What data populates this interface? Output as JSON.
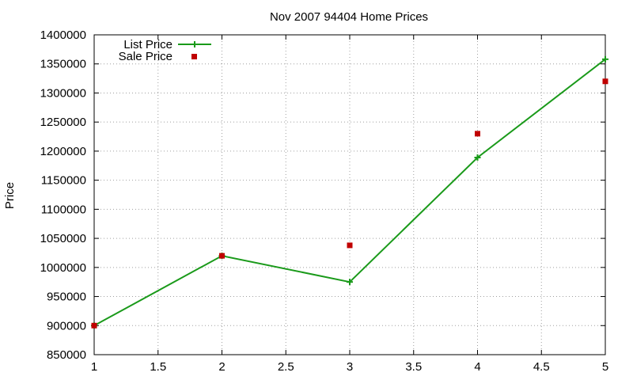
{
  "chart_data": {
    "type": "line",
    "title": "Nov 2007 94404 Home Prices",
    "xlabel": "",
    "ylabel": "Price",
    "xlim": [
      1,
      5
    ],
    "ylim": [
      850000,
      1400000
    ],
    "x_ticks": [
      "1",
      "1.5",
      "2",
      "2.5",
      "3",
      "3.5",
      "4",
      "4.5",
      "5"
    ],
    "y_ticks": [
      "850000",
      "900000",
      "950000",
      "1000000",
      "1050000",
      "1100000",
      "1150000",
      "1200000",
      "1250000",
      "1300000",
      "1350000",
      "1400000"
    ],
    "grid": true,
    "legend_position": "top-left",
    "series": [
      {
        "name": "List Price",
        "style": "linespoints",
        "color": "#1a9a1a",
        "x": [
          1,
          2,
          3,
          4,
          5
        ],
        "y": [
          900000,
          1020000,
          975000,
          1189000,
          1358000
        ]
      },
      {
        "name": "Sale Price",
        "style": "points",
        "color": "#c00000",
        "x": [
          1,
          2,
          3,
          4,
          5
        ],
        "y": [
          900000,
          1020000,
          1038000,
          1230000,
          1320000
        ]
      }
    ]
  }
}
